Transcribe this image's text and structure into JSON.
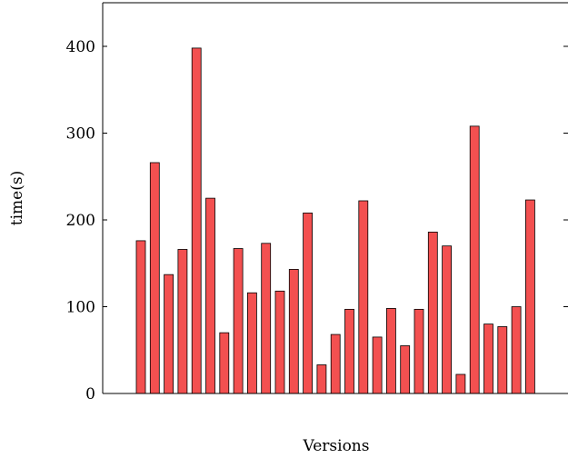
{
  "chart_data": {
    "type": "bar",
    "title": "",
    "xlabel": "Versions",
    "ylabel": "time(s)",
    "ylim": [
      0,
      400
    ],
    "yticks": [
      0,
      100,
      200,
      300,
      400
    ],
    "series": [
      {
        "values": [
          176,
          266,
          137,
          166,
          398,
          225,
          70,
          167,
          116,
          173,
          118,
          143,
          208,
          33,
          68,
          97,
          222,
          65,
          98,
          55,
          97,
          186,
          170,
          22,
          308,
          80,
          77,
          100,
          223
        ]
      }
    ],
    "bar_fill": "#f35050",
    "bar_stroke": "#000000",
    "axis_color": "#000000",
    "grid": false,
    "legend": "none"
  }
}
